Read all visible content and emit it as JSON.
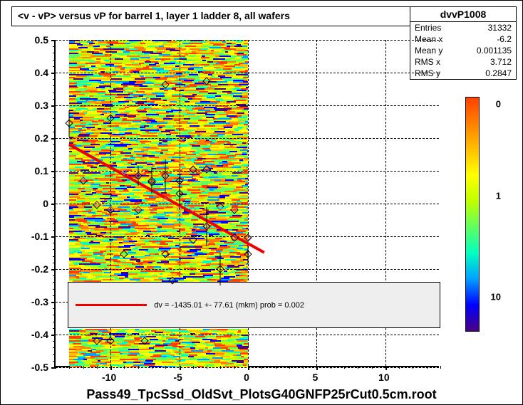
{
  "title": "<v - vP>       versus   vP for barrel 1, layer 1 ladder 8, all wafers",
  "stats": {
    "name": "dvvP1008",
    "entries_label": "Entries",
    "entries": "31332",
    "meanx_label": "Mean x",
    "meanx": "-6.2",
    "meany_label": "Mean y",
    "meany": "0.001135",
    "rmsx_label": "RMS x",
    "rmsx": "3.712",
    "rmsy_label": "RMS y",
    "rmsy": "0.2847"
  },
  "footer": "Pass49_TpcSsd_OldSvt_PlotsG40GNFP25rCut0.5cm.root",
  "legend": {
    "text": "dv = -1435.01 +- 77.61 (mkm) prob = 0.002"
  },
  "chart": {
    "type": "scatter-heatmap",
    "xlim": [
      -14,
      14
    ],
    "ylim": [
      -0.5,
      0.5
    ],
    "xticks": [
      -10,
      -5,
      0,
      5,
      10
    ],
    "yticks": [
      -0.5,
      -0.4,
      -0.3,
      -0.2,
      -0.1,
      0,
      0.1,
      0.2,
      0.3,
      0.4,
      0.5
    ],
    "xtick_minor_step": 1,
    "ytick_minor_step": 0.02,
    "background_color": "#ffffff",
    "grid_color": "#000000",
    "heatmap_xrange": [
      -13,
      0
    ],
    "heatmap_gap_y": [
      -0.38,
      -0.24
    ],
    "heatmap_palette": [
      "#4b0082",
      "#0000ff",
      "#00a0ff",
      "#00ffc0",
      "#60ff60",
      "#c0ff00",
      "#ffff00",
      "#ffc000",
      "#ff8000",
      "#ff4000"
    ],
    "colorbar_ticks": [
      {
        "label": "0",
        "pos": 0.97
      },
      {
        "label": "1",
        "pos": 0.58
      },
      {
        "label": "10",
        "pos": 0.15
      }
    ],
    "fit_line": {
      "x1": -13.0,
      "y1": 0.18,
      "x2": 1.2,
      "y2": -0.15,
      "color": "#ee0000",
      "width": 4
    },
    "markers_open": [
      {
        "x": -13,
        "y": 0.245,
        "err": 0.04
      },
      {
        "x": -12,
        "y": 0.07
      },
      {
        "x": -11,
        "y": -0.005
      },
      {
        "x": -10,
        "y": 0.26
      },
      {
        "x": -10,
        "y": -0.02
      },
      {
        "x": -9,
        "y": -0.155
      },
      {
        "x": -8,
        "y": 0.085,
        "err": 0.03
      },
      {
        "x": -8,
        "y": -0.02
      },
      {
        "x": -7,
        "y": 0.07,
        "err": 0.04
      },
      {
        "x": -7,
        "y": 0.065
      },
      {
        "x": -6,
        "y": 0.363
      },
      {
        "x": -6,
        "y": 0.085,
        "err": 0.05
      },
      {
        "x": -6,
        "y": -0.155
      },
      {
        "x": -5,
        "y": 0.07
      },
      {
        "x": -5,
        "y": 0.03,
        "err": 0.05
      },
      {
        "x": -5.5,
        "y": -0.235
      },
      {
        "x": -4,
        "y": 0.105
      },
      {
        "x": -4,
        "y": -0.11
      },
      {
        "x": -3,
        "y": 0.375
      },
      {
        "x": -3,
        "y": 0.105
      },
      {
        "x": -3,
        "y": -0.07,
        "err": 0.06
      },
      {
        "x": -2,
        "y": -0.008
      },
      {
        "x": -2,
        "y": -0.2,
        "err": 0.05
      },
      {
        "x": -1,
        "y": -0.105
      },
      {
        "x": -1,
        "y": -0.02
      },
      {
        "x": 0,
        "y": -0.105
      },
      {
        "x": 0,
        "y": -0.155,
        "err": 0.03
      },
      {
        "x": -11,
        "y": -0.42
      },
      {
        "x": -10,
        "y": -0.42
      },
      {
        "x": -7.5,
        "y": -0.42
      }
    ],
    "markers_pink": [
      {
        "x": -12,
        "y": 0.075
      },
      {
        "x": -11,
        "y": 0.0
      },
      {
        "x": -10,
        "y": -0.018
      },
      {
        "x": -9,
        "y": 0.095
      },
      {
        "x": -8,
        "y": 0.085
      },
      {
        "x": -8,
        "y": -0.018
      },
      {
        "x": -7,
        "y": 0.07
      },
      {
        "x": -7,
        "y": -0.018
      },
      {
        "x": -6,
        "y": 0.085
      },
      {
        "x": -6,
        "y": 0.01
      },
      {
        "x": -5,
        "y": -0.018
      },
      {
        "x": -4,
        "y": 0.105
      },
      {
        "x": -4,
        "y": -0.018
      },
      {
        "x": -3,
        "y": 0.105
      },
      {
        "x": -3,
        "y": -0.07
      },
      {
        "x": -2,
        "y": -0.01
      },
      {
        "x": -1,
        "y": -0.018
      },
      {
        "x": -1,
        "y": -0.105
      },
      {
        "x": 0,
        "y": -0.105
      }
    ]
  }
}
